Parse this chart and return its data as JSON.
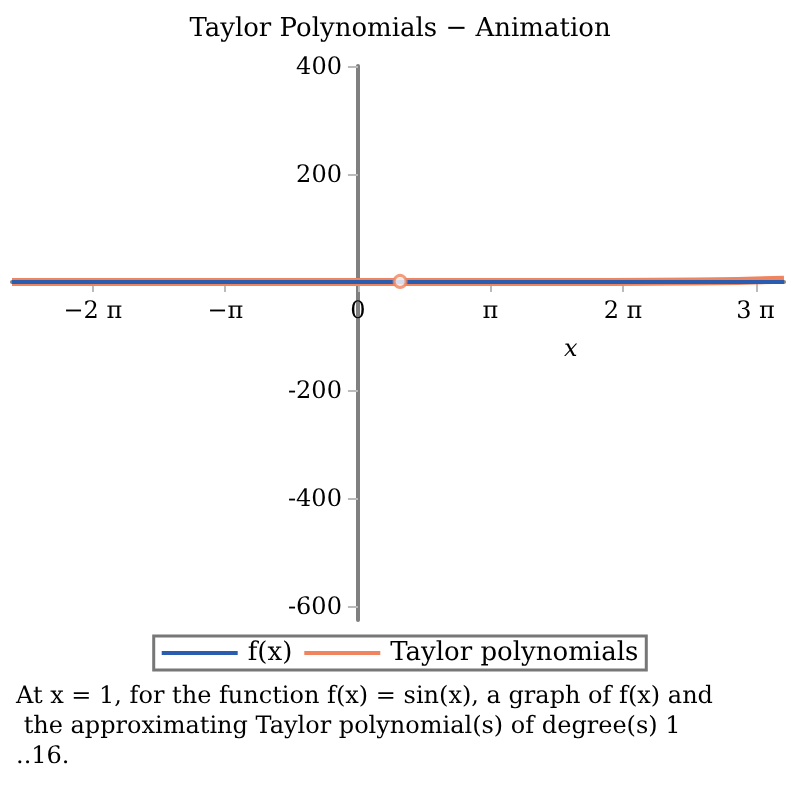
{
  "chart_data": {
    "type": "line",
    "title": "Taylor Polynomials − Animation",
    "xlabel": "x",
    "xlim": [
      -8.2,
      10.1
    ],
    "ylim": [
      -626,
      400
    ],
    "xticks": [
      {
        "value": -6.283,
        "label": "−2 π"
      },
      {
        "value": -3.142,
        "label": "−π"
      },
      {
        "value": 0,
        "label": "0"
      },
      {
        "value": 3.142,
        "label": "π"
      },
      {
        "value": 6.283,
        "label": "2 π"
      },
      {
        "value": 9.425,
        "label": "3 π"
      }
    ],
    "yticks": [
      -600,
      -400,
      -200,
      200,
      400
    ],
    "series": [
      {
        "name": "f(x)",
        "color": "#2a5db0",
        "x": [
          -8.2,
          -6,
          -4,
          -2,
          0,
          2,
          4,
          6,
          8,
          10.1
        ],
        "values": [
          0,
          0,
          0,
          0,
          0,
          0,
          0,
          0,
          0,
          0
        ]
      },
      {
        "name": "Taylor polynomials",
        "color": "#f0845f",
        "x": [
          -8.2,
          -6,
          -4,
          -2,
          0,
          2,
          4,
          6,
          8,
          9,
          10.1
        ],
        "values": [
          0,
          0,
          0,
          0,
          0,
          0,
          0,
          0,
          1,
          2,
          4
        ]
      },
      {
        "type": "scatter",
        "color": "#f0845f",
        "x": [
          1
        ],
        "values": [
          1
        ]
      }
    ],
    "legend": "bottom",
    "grid": false,
    "annotations": [
      "At x = 1, for the function f(x) = sin(x), a graph of f(x) and the approximating Taylor polynomial(s) of degree(s) 1 ..16."
    ]
  }
}
